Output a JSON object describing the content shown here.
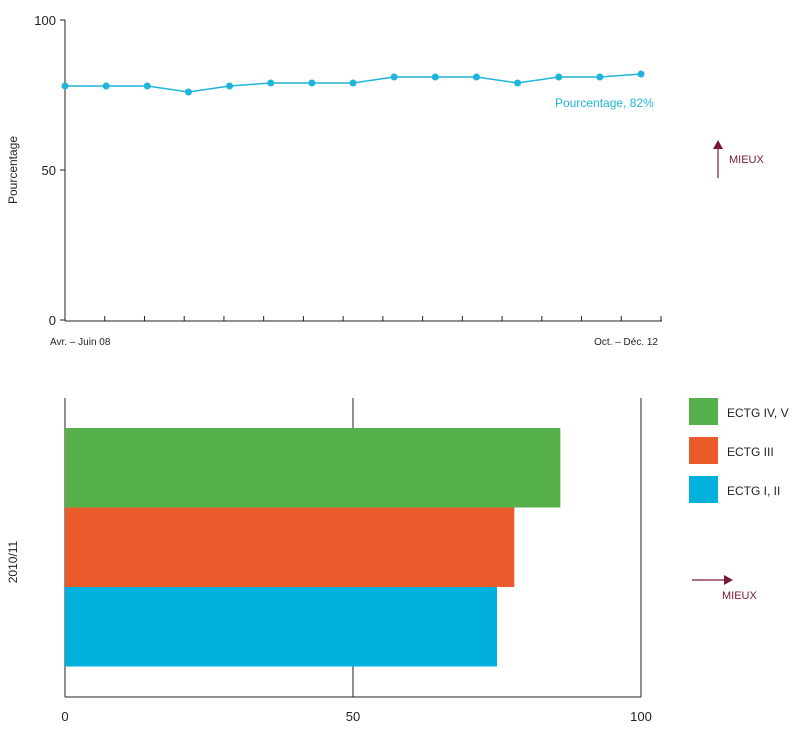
{
  "chart_data": [
    {
      "type": "line",
      "ylabel": "Pourcentage",
      "ylim": [
        0,
        100
      ],
      "yticks": [
        0,
        50,
        100
      ],
      "x_start_label": "Avr. – Juin 08",
      "x_end_label": "Oct. – Déc. 12",
      "series": [
        {
          "name": "Pourcentage",
          "values": [
            78,
            78,
            78,
            76,
            78,
            79,
            79,
            79,
            81,
            81,
            81,
            79,
            81,
            81,
            82
          ],
          "end_label": "Pourcentage, 82%"
        }
      ],
      "grid": false,
      "direction_label": "MIEUX",
      "direction": "up"
    },
    {
      "type": "bar",
      "orientation": "horizontal",
      "category_label": "2010/11",
      "xlim": [
        0,
        100
      ],
      "xticks": [
        0,
        50,
        100
      ],
      "grid": true,
      "series": [
        {
          "name": "ECTG IV, V",
          "value": 86,
          "color": "#56b04b"
        },
        {
          "name": "ECTG III",
          "value": 78,
          "color": "#eb5a2b"
        },
        {
          "name": "ECTG I, II",
          "value": 75,
          "color": "#00b0dd"
        }
      ],
      "legend_position": "right",
      "direction_label": "MIEUX",
      "direction": "right"
    }
  ],
  "colors": {
    "line": "#1fb4d9",
    "axis": "#231f20",
    "arrow": "#7a1a32"
  }
}
